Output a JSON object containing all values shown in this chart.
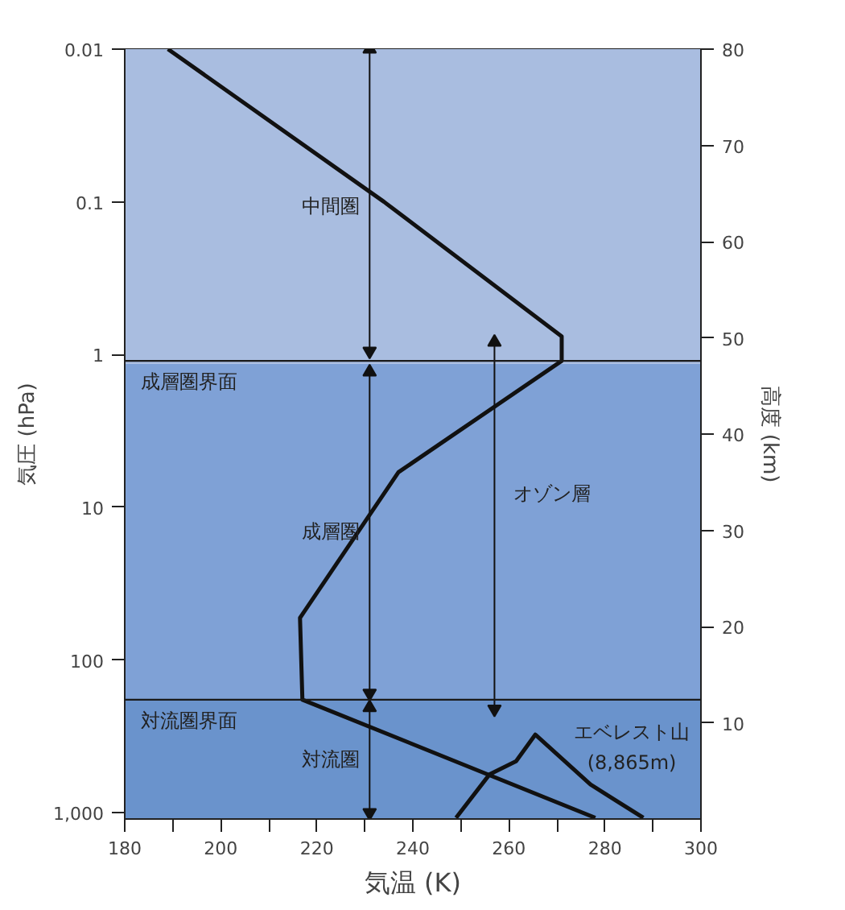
{
  "chart_data": {
    "type": "line",
    "xlabel": "気温 (K)",
    "ylabel": "気圧 (hPa)",
    "y2label": "高度 (km)",
    "log": "y",
    "grid": false,
    "marker": "none",
    "line_style": "solid",
    "xlim": [
      180,
      300
    ],
    "ylim": [
      1100,
      0.01
    ],
    "y2lim": [
      0,
      80
    ],
    "xticks": [
      180,
      {
        "value": 190,
        "label": null
      },
      200,
      {
        "value": 210,
        "label": null
      },
      220,
      {
        "value": 230,
        "label": null
      },
      240,
      {
        "value": 250,
        "label": null
      },
      260,
      {
        "value": 270,
        "label": null
      },
      280,
      {
        "value": 290,
        "label": null
      },
      300
    ],
    "yticks": [
      0.01,
      0.1,
      1,
      10,
      100,
      {
        "value": 1000,
        "label": "1,000"
      }
    ],
    "y2ticks": [
      10,
      20,
      30,
      40,
      50,
      60,
      70,
      80
    ],
    "bands": [
      {
        "axis": "y",
        "from": 0.01,
        "to": 1.15,
        "color": "#a9bde0",
        "label": "中間圏"
      },
      {
        "axis": "y",
        "from": 1.15,
        "to": 182,
        "color": "#7fa1d6",
        "label": "成層圏"
      },
      {
        "axis": "y",
        "from": 182,
        "to": 1100,
        "color": "#6a93cc",
        "label": "対流圏"
      }
    ],
    "ref_lines": [
      {
        "axis": "y",
        "value": 1.1,
        "label": "成層圏界面",
        "color": "#1a1a1a"
      },
      {
        "axis": "y",
        "value": 182,
        "label": "対流圏界面",
        "color": "#1a1a1a"
      }
    ],
    "series": [
      {
        "color": "#111111",
        "x": [
          189,
          234,
          271,
          271,
          237,
          216.5,
          217,
          278
        ],
        "values": [
          0.01,
          0.1,
          0.76,
          1.1,
          5.9,
          53,
          182,
          1080
        ]
      },
      {
        "color": "#111111",
        "x": [
          249,
          256,
          261.5,
          265.5,
          277,
          288
        ],
        "values": [
          1080,
          560,
          460,
          308,
          654,
          1080
        ]
      },
      {
        "color": "#111111",
        "marker": "triangle",
        "x": [
          231,
          231
        ],
        "values": [
          0.01,
          0.95
        ]
      },
      {
        "color": "#111111",
        "marker": "triangle",
        "x": [
          231,
          231
        ],
        "values": [
          1.3,
          165
        ]
      },
      {
        "color": "#111111",
        "marker": "triangle",
        "x": [
          231,
          231
        ],
        "values": [
          205,
          1000
        ]
      },
      {
        "name": "オゾン層",
        "color": "#111111",
        "marker": "triangle",
        "x": [
          257,
          257
        ],
        "values": [
          0.83,
          210
        ]
      }
    ],
    "annotations": [
      "エベレスト山",
      "(8,865m)"
    ]
  }
}
